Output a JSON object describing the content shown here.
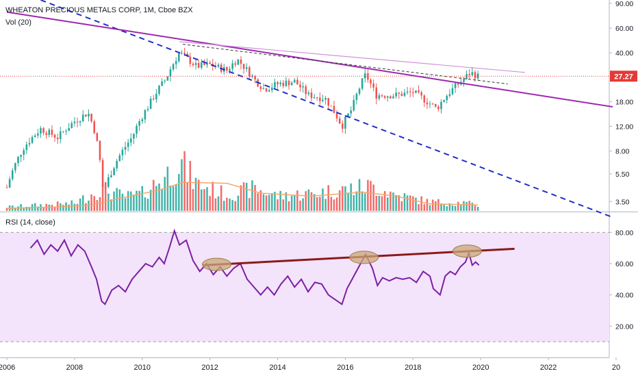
{
  "legend": {
    "title": "WHEATON PRECIOUS METALS CORP, 1M, Cboe BZX",
    "volume": "Vol (20)",
    "rsi": "RSI (14, close)"
  },
  "price_badge": "27.27",
  "colors": {
    "up": "#26a69a",
    "down": "#ef5350",
    "trendline": "#9c27b0",
    "thin_trendline": "#ce93d8",
    "dashed_channel": "#1e2fc6",
    "rsi_line": "#7b1fa2",
    "rsi_band": "#f3e3fb",
    "rsi_trend": "#8b1a1a",
    "ellipse_fill": "#c9a877",
    "vol_ma": "#f5a86b",
    "price_line": "#e53935"
  },
  "chart_data": [
    {
      "type": "candlestick",
      "title": "WHEATON PRECIOUS METALS CORP, 1M, Cboe BZX",
      "x_axis": {
        "ticks": [
          "2006",
          "2008",
          "2010",
          "2012",
          "2014",
          "2016",
          "2018",
          "2020",
          "2022",
          "20"
        ],
        "range": [
          2006.0,
          2024.0
        ]
      },
      "y_axis": {
        "scale": "log",
        "ticks": [
          "90.00",
          "60.00",
          "40.00",
          "18.00",
          "12.00",
          "8.00",
          "5.50",
          "3.50"
        ],
        "tick_values": [
          90,
          60,
          40,
          18,
          12,
          8,
          5.5,
          3.5
        ],
        "range": [
          3.0,
          95.0
        ]
      },
      "last_price": 27.27,
      "price_anchors": [
        [
          2006.0,
          4.4
        ],
        [
          2006.5,
          8.5
        ],
        [
          2007.0,
          11.5
        ],
        [
          2007.5,
          10.0
        ],
        [
          2008.0,
          13.0
        ],
        [
          2008.4,
          15.0
        ],
        [
          2008.6,
          11.0
        ],
        [
          2008.85,
          4.0
        ],
        [
          2009.2,
          6.5
        ],
        [
          2009.7,
          10.0
        ],
        [
          2010.2,
          17.0
        ],
        [
          2010.7,
          26.0
        ],
        [
          2011.1,
          40.0
        ],
        [
          2011.6,
          32.0
        ],
        [
          2012.0,
          33.0
        ],
        [
          2012.5,
          30.0
        ],
        [
          2012.8,
          36.0
        ],
        [
          2013.3,
          26.0
        ],
        [
          2013.6,
          22.0
        ],
        [
          2014.0,
          24.0
        ],
        [
          2014.5,
          25.0
        ],
        [
          2014.9,
          20.0
        ],
        [
          2015.4,
          19.0
        ],
        [
          2015.9,
          12.0
        ],
        [
          2016.2,
          16.0
        ],
        [
          2016.6,
          28.0
        ],
        [
          2016.9,
          20.0
        ],
        [
          2017.5,
          20.0
        ],
        [
          2018.0,
          21.0
        ],
        [
          2018.7,
          16.0
        ],
        [
          2019.0,
          20.0
        ],
        [
          2019.5,
          26.0
        ],
        [
          2019.7,
          29.0
        ],
        [
          2019.9,
          27.27
        ]
      ],
      "annotations": {
        "solid_trendline": [
          [
            2006.0,
            78.0
          ],
          [
            2023.9,
            16.5
          ]
        ],
        "thin_trendline": [
          [
            2011.1,
            48.0
          ],
          [
            2021.3,
            29.0
          ]
        ],
        "dashed_upper": [
          [
            2011.2,
            46.0
          ],
          [
            2020.8,
            24.0
          ]
        ],
        "dashed_channel": [
          [
            2007.0,
            95.0
          ],
          [
            2023.9,
            2.7
          ]
        ]
      }
    },
    {
      "type": "bar",
      "title": "Vol (20)",
      "volume_anchors": [
        [
          2006.0,
          0.08
        ],
        [
          2007.0,
          0.12
        ],
        [
          2008.0,
          0.15
        ],
        [
          2008.8,
          0.45
        ],
        [
          2009.5,
          0.28
        ],
        [
          2010.0,
          0.35
        ],
        [
          2010.7,
          0.7
        ],
        [
          2011.1,
          1.0
        ],
        [
          2011.6,
          0.55
        ],
        [
          2012.5,
          0.32
        ],
        [
          2013.3,
          0.45
        ],
        [
          2014.0,
          0.3
        ],
        [
          2015.0,
          0.35
        ],
        [
          2016.2,
          0.45
        ],
        [
          2016.8,
          0.5
        ],
        [
          2017.5,
          0.32
        ],
        [
          2018.5,
          0.18
        ],
        [
          2019.5,
          0.16
        ],
        [
          2019.9,
          0.12
        ]
      ],
      "ma_anchors": [
        [
          2006.0,
          0.05
        ],
        [
          2007.5,
          0.08
        ],
        [
          2008.5,
          0.12
        ],
        [
          2009.5,
          0.28
        ],
        [
          2010.5,
          0.42
        ],
        [
          2011.2,
          0.58
        ],
        [
          2012.5,
          0.56
        ],
        [
          2013.5,
          0.36
        ],
        [
          2015.0,
          0.3
        ],
        [
          2016.5,
          0.38
        ],
        [
          2017.5,
          0.3
        ],
        [
          2018.5,
          0.14
        ],
        [
          2019.5,
          0.13
        ],
        [
          2019.9,
          0.12
        ]
      ]
    },
    {
      "type": "line",
      "title": "RSI (14, close)",
      "y_axis": {
        "ticks": [
          "80.00",
          "60.00",
          "40.00",
          "20.00"
        ],
        "tick_values": [
          80,
          60,
          40,
          20
        ],
        "range": [
          0,
          92
        ],
        "band": [
          10,
          80
        ]
      },
      "series": [
        {
          "values": [
            [
              2006.7,
              70.0
            ],
            [
              2006.9,
              75.0
            ],
            [
              2007.1,
              66.0
            ],
            [
              2007.3,
              72.0
            ],
            [
              2007.5,
              68.0
            ],
            [
              2007.7,
              75.0
            ],
            [
              2007.9,
              65.0
            ],
            [
              2008.1,
              72.0
            ],
            [
              2008.3,
              68.0
            ],
            [
              2008.5,
              58.0
            ],
            [
              2008.65,
              50.0
            ],
            [
              2008.8,
              36.0
            ],
            [
              2008.9,
              34.0
            ],
            [
              2009.1,
              43.0
            ],
            [
              2009.3,
              46.0
            ],
            [
              2009.5,
              42.0
            ],
            [
              2009.7,
              50.0
            ],
            [
              2009.9,
              55.0
            ],
            [
              2010.1,
              60.0
            ],
            [
              2010.3,
              58.0
            ],
            [
              2010.5,
              64.0
            ],
            [
              2010.65,
              60.0
            ],
            [
              2010.8,
              70.0
            ],
            [
              2010.95,
              81.0
            ],
            [
              2011.1,
              72.0
            ],
            [
              2011.3,
              75.0
            ],
            [
              2011.5,
              62.0
            ],
            [
              2011.7,
              55.0
            ],
            [
              2011.9,
              60.0
            ],
            [
              2012.1,
              53.0
            ],
            [
              2012.3,
              58.0
            ],
            [
              2012.5,
              52.0
            ],
            [
              2012.7,
              57.0
            ],
            [
              2012.9,
              60.0
            ],
            [
              2013.1,
              50.0
            ],
            [
              2013.3,
              45.0
            ],
            [
              2013.5,
              40.0
            ],
            [
              2013.7,
              45.0
            ],
            [
              2013.9,
              40.0
            ],
            [
              2014.1,
              47.0
            ],
            [
              2014.3,
              52.0
            ],
            [
              2014.5,
              45.0
            ],
            [
              2014.7,
              50.0
            ],
            [
              2014.9,
              42.0
            ],
            [
              2015.1,
              48.0
            ],
            [
              2015.3,
              47.0
            ],
            [
              2015.5,
              40.0
            ],
            [
              2015.7,
              37.0
            ],
            [
              2015.9,
              34.0
            ],
            [
              2016.05,
              44.0
            ],
            [
              2016.2,
              50.0
            ],
            [
              2016.4,
              58.0
            ],
            [
              2016.6,
              66.0
            ],
            [
              2016.8,
              57.0
            ],
            [
              2016.95,
              46.0
            ],
            [
              2017.1,
              51.0
            ],
            [
              2017.3,
              49.0
            ],
            [
              2017.5,
              51.0
            ],
            [
              2017.7,
              50.0
            ],
            [
              2017.9,
              51.0
            ],
            [
              2018.1,
              48.0
            ],
            [
              2018.3,
              55.0
            ],
            [
              2018.5,
              52.0
            ],
            [
              2018.6,
              44.0
            ],
            [
              2018.8,
              40.0
            ],
            [
              2018.95,
              52.0
            ],
            [
              2019.1,
              55.0
            ],
            [
              2019.25,
              53.0
            ],
            [
              2019.4,
              58.0
            ],
            [
              2019.55,
              61.0
            ],
            [
              2019.65,
              67.0
            ],
            [
              2019.75,
              59.0
            ],
            [
              2019.85,
              61.0
            ],
            [
              2019.95,
              59.0
            ]
          ]
        }
      ],
      "annotations": {
        "trendline": [
          [
            2011.8,
            59.0
          ],
          [
            2021.0,
            69.5
          ]
        ],
        "ellipses": [
          [
            2012.2,
            59.5
          ],
          [
            2016.55,
            64.0
          ],
          [
            2019.6,
            68.0
          ]
        ]
      }
    }
  ]
}
